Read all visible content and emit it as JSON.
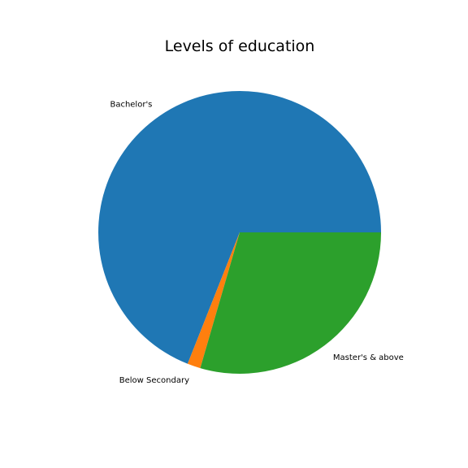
{
  "chart_data": {
    "type": "pie",
    "title": "Levels of education",
    "labels": [
      "Bachelor's",
      "Below Secondary",
      "Master's & above"
    ],
    "values": [
      69.0,
      1.5,
      29.5
    ],
    "colors": [
      "#1f77b4",
      "#ff7f0e",
      "#2ca02c"
    ],
    "start_angle_deg": 0,
    "direction": "counterclockwise"
  }
}
